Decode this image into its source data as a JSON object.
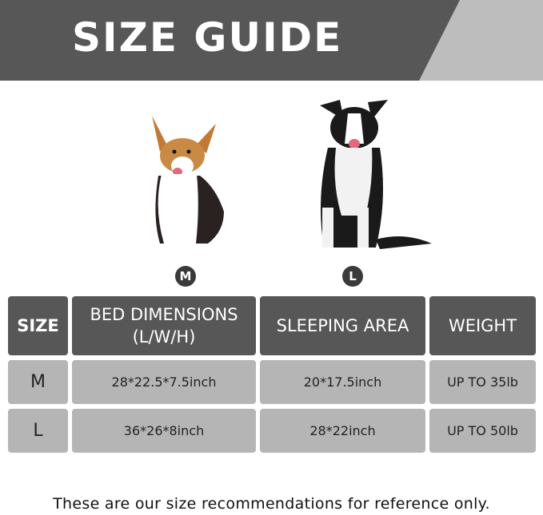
{
  "title": "SIZE GUIDE",
  "colors": {
    "banner": "#575757",
    "banner_accent": "#bdbdbd",
    "header_cell": "#575757",
    "data_cell": "#b5b5b5"
  },
  "dogs": [
    {
      "badge": "M",
      "image": "corgi"
    },
    {
      "badge": "L",
      "image": "border-collie"
    }
  ],
  "table": {
    "headers": [
      "SIZE",
      "BED DIMENSIONS",
      "(L/W/H)",
      "SLEEPING AREA",
      "WEIGHT"
    ],
    "rows": [
      {
        "size": "M",
        "bed": "28*22.5*7.5inch",
        "sleeping": "20*17.5inch",
        "weight": "UP TO 35lb"
      },
      {
        "size": "L",
        "bed": "36*26*8inch",
        "sleeping": "28*22inch",
        "weight": "UP TO 50lb"
      }
    ]
  },
  "footer": "These are our size recommendations for reference only."
}
